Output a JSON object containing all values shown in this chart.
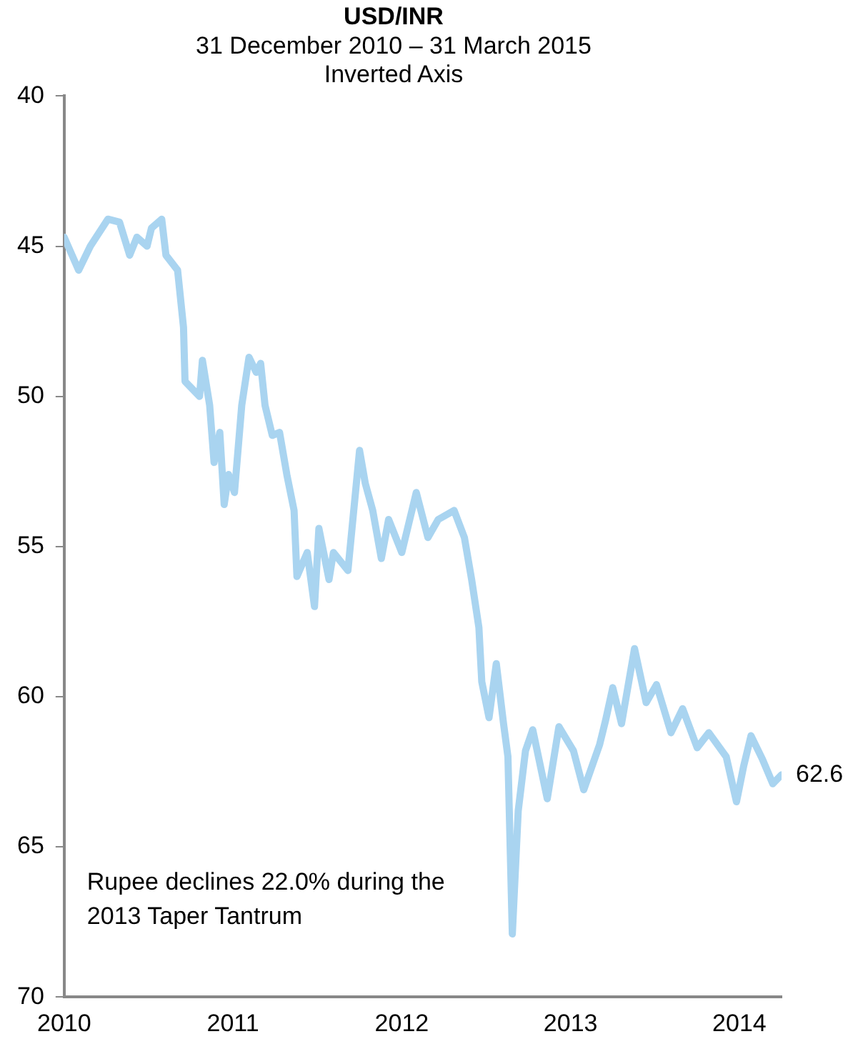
{
  "chart_data": {
    "type": "line",
    "title": "USD/INR",
    "subtitle": "31 December 2010 – 31 March 2015\nInverted Axis",
    "x": [
      2010.0,
      2010.086,
      2010.155,
      2010.259,
      2010.328,
      2010.388,
      2010.431,
      2010.491,
      2010.517,
      2010.578,
      2010.603,
      2010.672,
      2010.707,
      2010.716,
      2010.802,
      2010.819,
      2010.862,
      2010.888,
      2010.922,
      2010.948,
      2010.974,
      2011.009,
      2011.052,
      2011.095,
      2011.138,
      2011.164,
      2011.19,
      2011.233,
      2011.276,
      2011.319,
      2011.362,
      2011.379,
      2011.44,
      2011.483,
      2011.509,
      2011.569,
      2011.595,
      2011.681,
      2011.75,
      2011.784,
      2011.828,
      2011.879,
      2011.922,
      2012.0,
      2012.086,
      2012.155,
      2012.216,
      2012.31,
      2012.371,
      2012.414,
      2012.457,
      2012.474,
      2012.517,
      2012.56,
      2012.603,
      2012.629,
      2012.655,
      2012.69,
      2012.733,
      2012.776,
      2012.862,
      2012.931,
      2013.017,
      2013.078,
      2013.172,
      2013.207,
      2013.25,
      2013.302,
      2013.379,
      2013.448,
      2013.509,
      2013.595,
      2013.664,
      2013.75,
      2013.819,
      2013.922,
      2013.983,
      2014.026,
      2014.069,
      2014.138,
      2014.198,
      2014.25
    ],
    "series": [
      {
        "color": "#a9d4f0",
        "values": [
          44.7,
          45.8,
          45.0,
          44.1,
          44.2,
          45.3,
          44.7,
          45.0,
          44.4,
          44.1,
          45.3,
          45.8,
          47.7,
          49.5,
          50.0,
          48.8,
          50.3,
          52.2,
          51.2,
          53.6,
          52.6,
          53.2,
          50.3,
          48.7,
          49.2,
          48.9,
          50.3,
          51.3,
          51.2,
          52.6,
          53.8,
          56.0,
          55.2,
          57.0,
          54.4,
          56.1,
          55.2,
          55.8,
          51.8,
          52.9,
          53.8,
          55.4,
          54.1,
          55.2,
          53.2,
          54.7,
          54.1,
          53.8,
          54.7,
          56.1,
          57.7,
          59.5,
          60.7,
          58.9,
          60.9,
          62.0,
          67.9,
          63.8,
          61.8,
          61.1,
          63.4,
          61.0,
          61.8,
          63.1,
          61.6,
          60.8,
          59.7,
          60.9,
          58.4,
          60.2,
          59.6,
          61.2,
          60.4,
          61.7,
          61.2,
          62.0,
          63.5,
          62.3,
          61.3,
          62.1,
          62.9,
          62.6
        ]
      }
    ],
    "xlim": [
      2010,
      2014.25
    ],
    "xticks": [
      2010,
      2011,
      2012,
      2013,
      2014
    ],
    "ylim": [
      70,
      40
    ],
    "yticks": [
      40,
      45,
      50,
      55,
      60,
      65,
      70
    ],
    "grid": false,
    "legend": false,
    "marker": "none",
    "line_style": "solid",
    "annotations": [
      "Rupee declines 22.0% during the 2013 Taper Tantrum",
      {
        "text": "62.6",
        "x": 2014.25,
        "y": 62.6
      }
    ]
  }
}
